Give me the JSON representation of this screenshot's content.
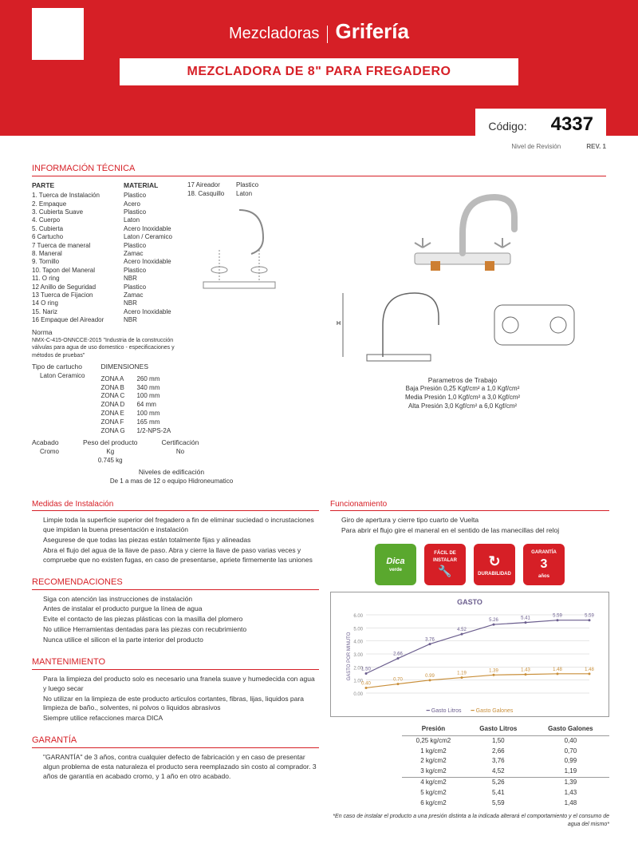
{
  "header": {
    "brand_thin": "Mezcladoras",
    "brand_bold": "Grifería",
    "title": "MEZCLADORA DE 8\" PARA FREGADERO",
    "code_label": "Código:",
    "code": "4337",
    "rev_label": "Nivel de Revisión",
    "rev": "REV. 1"
  },
  "info_tecnica": {
    "title": "INFORMACIÓN TÉCNICA",
    "parte_h": "PARTE",
    "material_h": "MATERIAL",
    "partes1": [
      "1. Tuerca de Instalación",
      "2. Empaque",
      "3. Cubierta Suave",
      "4. Cuerpo",
      "5. Cubierta",
      "6 Cartucho",
      "7 Tuerca de maneral",
      "8. Maneral",
      "9. Tornillo",
      "10. Tapon del Maneral",
      "11. O ring",
      "12 Anillo de Seguridad",
      "13 Tuerca de Fijacion",
      "14 O ring",
      "15. Nariz",
      "16 Empaque del Aireador"
    ],
    "mats1": [
      "Plastico",
      "Acero",
      "Plastico",
      "Laton",
      "Acero Inoxidable",
      "Laton / Ceramico",
      "Plastico",
      "Zamac",
      "Acero Inoxidable",
      "Plastico",
      "NBR",
      "Plastico",
      "Zamac",
      "NBR",
      "Acero Inoxidable",
      "NBR"
    ],
    "partes2": [
      "17 Aireador",
      "18. Casquillo"
    ],
    "mats2": [
      "Plastico",
      "Laton"
    ],
    "norma_h": "Norma",
    "norma": "NMX-C-415-ONNCCE-2015 \"Industria de la construcción válvulas para agua de uso domestico - especificaciones y métodos de pruebas\"",
    "tipo_h": "Tipo de cartucho",
    "tipo": "Laton Ceramico",
    "acabado_h": "Acabado",
    "acabado": "Cromo",
    "peso_h": "Peso del producto",
    "peso_u": "Kg",
    "peso": "0.745 kg",
    "niv_h": "Niveles de edificación",
    "niv": "De 1 a mas de 12 o equipo Hidroneumatico",
    "cert_h": "Certificación",
    "cert": "No",
    "dim_h": "DIMENSIONES",
    "dims": [
      {
        "z": "ZONA A",
        "v": "260 mm"
      },
      {
        "z": "ZONA B",
        "v": "340 mm"
      },
      {
        "z": "ZONA C",
        "v": "100 mm"
      },
      {
        "z": "ZONA D",
        "v": "64 mm"
      },
      {
        "z": "ZONA E",
        "v": "100 mm"
      },
      {
        "z": "ZONA F",
        "v": "165 mm"
      },
      {
        "z": "ZONA G",
        "v": "1/2-NPS-2A"
      }
    ],
    "params_h": "Parametros de Trabajo",
    "params": [
      "Baja Presión 0,25 Kgf/cm² a 1,0 Kgf/cm²",
      "Media Presión 1,0 Kgf/cm² a 3,0 Kgf/cm²",
      "Alta Presión 3,0 Kgf/cm² a 6,0 Kgf/cm²"
    ]
  },
  "medidas": {
    "title": "Medidas de Instalación",
    "lines": [
      "Limpie toda la superficie superior del fregadero a fin de eliminar suciedad o incrustaciones que impidan la buena presentación e instalación",
      "Asegurese de que todas las piezas están totalmente fijas y alineadas",
      "Abra el flujo del agua de la llave de paso. Abra y cierre la llave de paso varias veces y compruebe que no existen fugas, en caso de presentarse, apriete firmemente las uniones"
    ]
  },
  "func": {
    "title": "Funcionamiento",
    "lines": [
      "Giro de apertura y cierre tipo cuarto de Vuelta",
      "Para abrir el flujo gire el maneral en el sentido de las manecillas del reloj"
    ]
  },
  "badges": [
    "Dica verde",
    "FÁCIL DE INSTALAR",
    "DURABILIDAD",
    "GARANTÍA 3 años"
  ],
  "recom": {
    "title": "RECOMENDACIONES",
    "lines": [
      "Siga con atención las instrucciones de instalación",
      "Antes de instalar el producto purgue la línea de agua",
      "Evite el contacto de las piezas plásticas con la masilla del plomero",
      "No utilice Herramientas dentadas para las piezas con recubrimiento",
      "Nunca utilice el silicon el la parte interior del producto"
    ]
  },
  "mant": {
    "title": "MANTENIMIENTO",
    "lines": [
      "Para la limpieza del producto solo es necesario una franela suave y humedecida con agua y luego secar",
      "No utilizar en la limpieza de este producto articulos cortantes, fibras, lijas, liquidos para limpieza de baño., solventes, ni polvos o liquidos abrasivos",
      "Siempre utilice refacciones marca DICA"
    ]
  },
  "garantia": {
    "title": "GARANTÍA",
    "text": "\"GARANTÍA\" de 3 años, contra cualquier defecto de fabricación y en caso de presentar algun problema de esta naturaleza el producto sera reemplazado sin costo al comprador. 3 años de garantía en acabado cromo, y 1 año en otro acabado."
  },
  "chart": {
    "title": "GASTO",
    "ylabel": "GASTO POR MINUTO",
    "x": [
      0,
      1,
      2,
      3,
      4,
      5,
      6,
      7
    ],
    "litros": [
      1.5,
      2.66,
      3.76,
      4.52,
      5.26,
      5.41,
      5.59,
      5.59
    ],
    "galones": [
      0.4,
      0.7,
      0.99,
      1.19,
      1.39,
      1.43,
      1.48,
      1.48
    ],
    "ylim": [
      0,
      6
    ],
    "colors": {
      "litros": "#6b5e8e",
      "galones": "#c98f3a",
      "grid": "#ccc",
      "labels": "#6b5e8e"
    },
    "legend": [
      "Gasto Litros",
      "Gasto Galones"
    ]
  },
  "tabla_presion": {
    "headers": [
      "Presión",
      "Gasto Litros",
      "Gasto Galones"
    ],
    "rows": [
      [
        "0,25 kg/cm2",
        "1,50",
        "0,40"
      ],
      [
        "1 kg/cm2",
        "2,66",
        "0,70"
      ],
      [
        "2 kg/cm2",
        "3,76",
        "0,99"
      ],
      [
        "3 kg/cm2",
        "4,52",
        "1,19"
      ],
      [
        "4 kg/cm2",
        "5,26",
        "1,39"
      ],
      [
        "5 kg/cm2",
        "5,41",
        "1,43"
      ],
      [
        "6 kg/cm2",
        "5,59",
        "1,48"
      ]
    ]
  },
  "footnote": "*En caso de instalar el producto a una presión distinta a la indicada alterará el comportamiento y el consumo de agua del mismo*"
}
